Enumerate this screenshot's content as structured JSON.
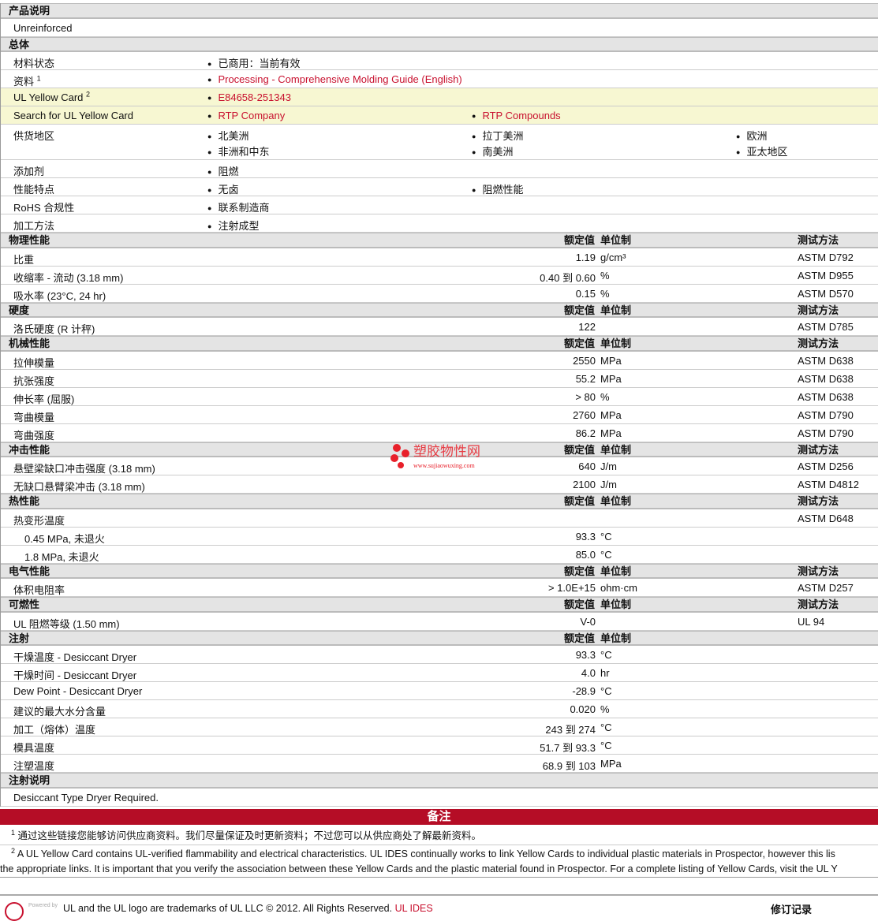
{
  "product_description": {
    "title": "产品说明",
    "text": "Unreinforced"
  },
  "general": {
    "title": "总体",
    "rows": [
      {
        "label": "材料状态",
        "items": [
          "已商用：当前有效"
        ]
      },
      {
        "label": "资料",
        "sup": "1",
        "links": [
          "Processing - Comprehensive Molding Guide (English)"
        ]
      },
      {
        "label": "UL Yellow Card",
        "sup": "2",
        "links": [
          "E84658-251343"
        ]
      },
      {
        "label": "Search for UL Yellow Card",
        "links": [
          "RTP Company",
          "RTP Compounds"
        ]
      },
      {
        "label": "供货地区",
        "items": [
          "北美洲",
          "拉丁美洲",
          "欧洲",
          "非洲和中东",
          "南美洲",
          "亚太地区"
        ]
      },
      {
        "label": "添加剂",
        "items": [
          "阻燃"
        ]
      },
      {
        "label": "性能特点",
        "items": [
          "无卤",
          "阻燃性能"
        ]
      },
      {
        "label": "RoHS 合规性",
        "items": [
          "联系制造商"
        ]
      },
      {
        "label": "加工方法",
        "items": [
          "注射成型"
        ]
      }
    ]
  },
  "col_headers": {
    "value": "额定值",
    "unit": "单位制",
    "test": "测试方法"
  },
  "sections": [
    {
      "title": "物理性能",
      "test_header": true,
      "rows": [
        {
          "label": "比重",
          "value": "1.19",
          "unit": "g/cm³",
          "test": "ASTM D792"
        },
        {
          "label": "收缩率  - 流动  (3.18 mm)",
          "value": "0.40 到  0.60",
          "unit": "%",
          "test": "ASTM D955"
        },
        {
          "label": "吸水率  (23°C, 24 hr)",
          "value": "0.15",
          "unit": "%",
          "test": "ASTM D570"
        }
      ]
    },
    {
      "title": "硬度",
      "test_header": true,
      "rows": [
        {
          "label": "洛氏硬度  (R 计秤)",
          "value": "122",
          "unit": "",
          "test": "ASTM D785"
        }
      ]
    },
    {
      "title": "机械性能",
      "test_header": true,
      "rows": [
        {
          "label": "拉伸模量",
          "value": "2550",
          "unit": "MPa",
          "test": "ASTM D638"
        },
        {
          "label": "抗张强度",
          "value": "55.2",
          "unit": "MPa",
          "test": "ASTM D638"
        },
        {
          "label": "伸长率  (屈服)",
          "value": "> 80",
          "unit": "%",
          "test": "ASTM D638"
        },
        {
          "label": "弯曲模量",
          "value": "2760",
          "unit": "MPa",
          "test": "ASTM D790"
        },
        {
          "label": "弯曲强度",
          "value": "86.2",
          "unit": "MPa",
          "test": "ASTM D790"
        }
      ]
    },
    {
      "title": "冲击性能",
      "test_header": true,
      "rows": [
        {
          "label": "悬壁梁缺口冲击强度  (3.18 mm)",
          "value": "640",
          "unit": "J/m",
          "test": "ASTM D256"
        },
        {
          "label": "无缺口悬臂梁冲击  (3.18 mm)",
          "value": "2100",
          "unit": "J/m",
          "test": "ASTM D4812"
        }
      ]
    },
    {
      "title": "热性能",
      "test_header": true,
      "rows": [
        {
          "label": "热变形温度",
          "value": "",
          "unit": "",
          "test": "ASTM D648"
        },
        {
          "label": "0.45 MPa, 未退火",
          "indent": true,
          "value": "93.3",
          "unit": "°C",
          "test": ""
        },
        {
          "label": "1.8 MPa, 未退火",
          "indent": true,
          "value": "85.0",
          "unit": "°C",
          "test": ""
        }
      ]
    },
    {
      "title": "电气性能",
      "test_header": true,
      "rows": [
        {
          "label": "体积电阻率",
          "value": "> 1.0E+15",
          "unit": "ohm·cm",
          "test": "ASTM D257"
        }
      ]
    },
    {
      "title": "可燃性",
      "test_header": true,
      "rows": [
        {
          "label": "UL 阻燃等级  (1.50 mm)",
          "value": "V-0",
          "unit": "",
          "test": "UL 94"
        }
      ]
    },
    {
      "title": "注射",
      "test_header": false,
      "rows": [
        {
          "label": "干燥温度  - Desiccant Dryer",
          "value": "93.3",
          "unit": "°C",
          "test": ""
        },
        {
          "label": "干燥时间  - Desiccant Dryer",
          "value": "4.0",
          "unit": "hr",
          "test": ""
        },
        {
          "label": "Dew Point - Desiccant Dryer",
          "value": "-28.9",
          "unit": "°C",
          "test": ""
        },
        {
          "label": "建议的最大水分含量",
          "value": "0.020",
          "unit": "%",
          "test": ""
        },
        {
          "label": "加工（熔体）温度",
          "value": "243 到  274",
          "unit": "°C",
          "test": ""
        },
        {
          "label": "模具温度",
          "value": "51.7 到  93.3",
          "unit": "°C",
          "test": ""
        },
        {
          "label": "注塑温度",
          "value": "68.9 到  103",
          "unit": "MPa",
          "test": ""
        }
      ]
    }
  ],
  "injection_notes": {
    "title": "注射说明",
    "text": "Desiccant Type Dryer Required."
  },
  "notes": {
    "title": "备注",
    "note1": "通过这些链接您能够访问供应商资料。我们尽量保证及时更新资料；不过您可以从供应商处了解最新资料。",
    "note2a": "A UL Yellow Card contains UL-verified flammability and electrical characteristics. UL IDES continually works to link Yellow Cards to individual plastic materials in Prospector, however this lis",
    "note2b": "the appropriate links. It is important that you verify the association between these Yellow Cards and the plastic material found in Prospector. For a complete listing of Yellow Cards, visit the UL Y"
  },
  "footer": {
    "text": "UL and the UL logo are trademarks of UL LLC © 2012. All Rights Reserved.",
    "link": "UL IDES",
    "revision": "修订记录",
    "logo_text": "Powered by UL IDES"
  },
  "watermark": {
    "text": "塑胶物性网",
    "url": "www.sujiaowuxing.com",
    "color": "#e8202a"
  },
  "colors": {
    "link": "#c8102e",
    "notes_bar": "#b50d26",
    "highlight": "#f7f7d2",
    "header": "#e4e4e4"
  }
}
